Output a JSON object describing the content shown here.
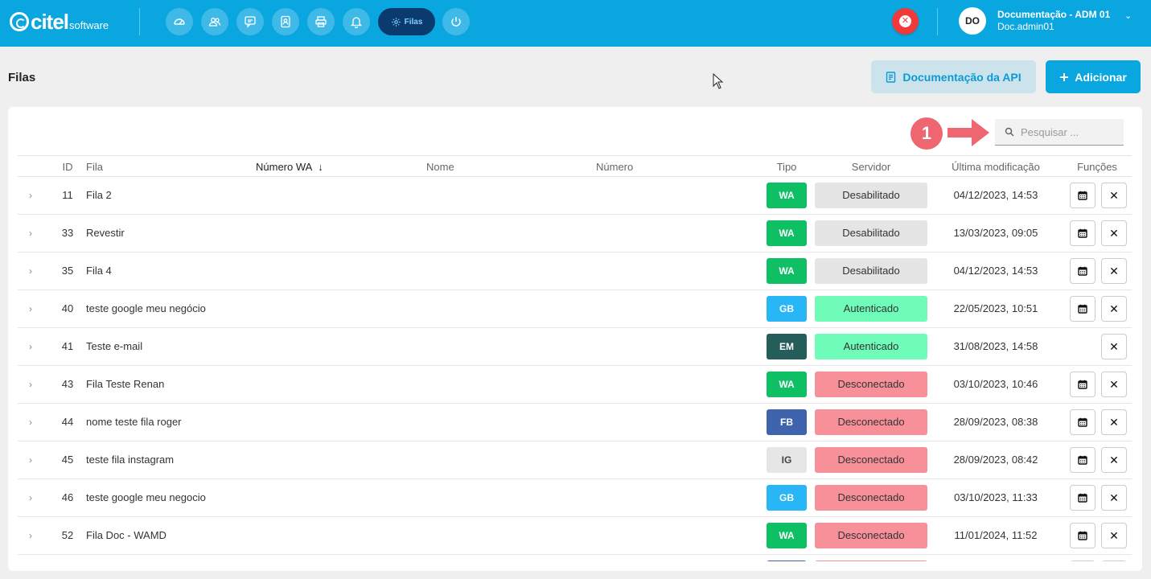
{
  "app": {
    "logo_text": "citel",
    "logo_sub": "software"
  },
  "nav": {
    "items": [
      {
        "name": "dashboard-icon"
      },
      {
        "name": "users-icon"
      },
      {
        "name": "chat-icon"
      },
      {
        "name": "contacts-icon"
      },
      {
        "name": "printer-icon"
      },
      {
        "name": "bell-icon"
      },
      {
        "name": "gear-icon",
        "label": "Filas",
        "active": true
      },
      {
        "name": "power-icon"
      }
    ]
  },
  "user": {
    "initials": "DO",
    "name": "Documentação - ADM 01",
    "login": "Doc.admin01"
  },
  "page": {
    "title": "Filas",
    "doc_button": "Documentação da API",
    "add_button": "Adicionar"
  },
  "search": {
    "placeholder": "Pesquisar ...",
    "marker": "1"
  },
  "table": {
    "headers": {
      "id": "ID",
      "fila": "Fila",
      "numero_wa": "Número WA",
      "sort_arrow": "↓",
      "nome": "Nome",
      "numero": "Número",
      "tipo": "Tipo",
      "servidor": "Servidor",
      "ultima": "Última modificação",
      "funcoes": "Funções"
    },
    "rows": [
      {
        "id": "11",
        "fila": "Fila 2",
        "tipo": "WA",
        "servidor": "Desabilitado",
        "data": "04/12/2023, 14:53",
        "cal": true
      },
      {
        "id": "33",
        "fila": "Revestir",
        "tipo": "WA",
        "servidor": "Desabilitado",
        "data": "13/03/2023, 09:05",
        "cal": true
      },
      {
        "id": "35",
        "fila": "Fila 4",
        "tipo": "WA",
        "servidor": "Desabilitado",
        "data": "04/12/2023, 14:53",
        "cal": true
      },
      {
        "id": "40",
        "fila": "teste google meu negócio",
        "tipo": "GB",
        "servidor": "Autenticado",
        "data": "22/05/2023, 10:51",
        "cal": true
      },
      {
        "id": "41",
        "fila": "Teste e-mail",
        "tipo": "EM",
        "servidor": "Autenticado",
        "data": "31/08/2023, 14:58",
        "cal": false
      },
      {
        "id": "43",
        "fila": "Fila Teste Renan",
        "tipo": "WA",
        "servidor": "Desconectado",
        "data": "03/10/2023, 10:46",
        "cal": true
      },
      {
        "id": "44",
        "fila": "nome teste fila roger",
        "tipo": "FB",
        "servidor": "Desconectado",
        "data": "28/09/2023, 08:38",
        "cal": true
      },
      {
        "id": "45",
        "fila": "teste fila instagram",
        "tipo": "IG",
        "servidor": "Desconectado",
        "data": "28/09/2023, 08:42",
        "cal": true
      },
      {
        "id": "46",
        "fila": "teste google meu negocio",
        "tipo": "GB",
        "servidor": "Desconectado",
        "data": "03/10/2023, 11:33",
        "cal": true
      },
      {
        "id": "52",
        "fila": "Fila Doc - WAMD",
        "tipo": "WA",
        "servidor": "Desconectado",
        "data": "11/01/2024, 11:52",
        "cal": true
      },
      {
        "id": "",
        "fila": "",
        "tipo": "FB",
        "servidor": "Desconectado",
        "data": "",
        "cal": true
      }
    ]
  },
  "colors": {
    "primary": "#0aa6e0",
    "WA": "#0fbf63",
    "GB": "#29b6f6",
    "EM": "#245d5a",
    "FB": "#3f63ad",
    "IG": "#e6e6e6",
    "Desabilitado": "#e5e5e5",
    "Autenticado": "#6ffbb8",
    "Desconectado": "#f8909a"
  }
}
